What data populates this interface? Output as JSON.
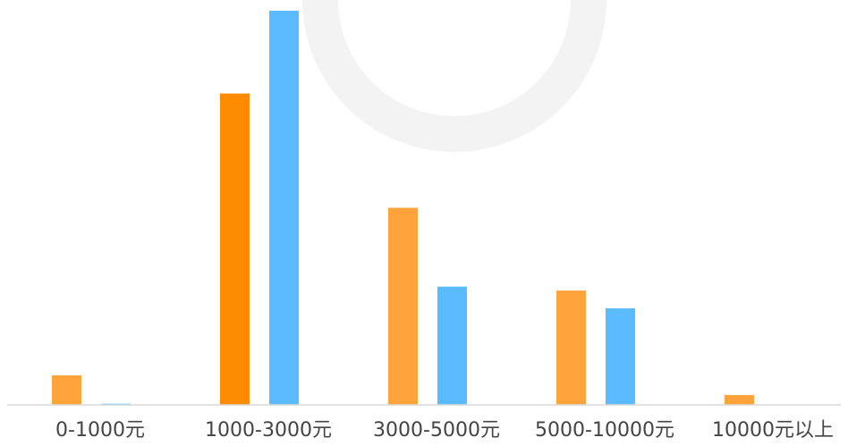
{
  "chart_data": {
    "type": "bar",
    "title": "",
    "xlabel": "",
    "ylabel": "",
    "categories": [
      "0-1000元",
      "1000-3000元",
      "3000-5000元",
      "5000-10000元",
      "10000元以上"
    ],
    "series": [
      {
        "values": [
          7.5,
          79,
          50,
          29,
          2.5
        ],
        "color": "#FFA33A",
        "highlight_color": "#FF8C00",
        "highlight_index": 1
      },
      {
        "values": [
          0.3,
          100,
          30,
          24.5,
          0
        ],
        "color": "#5CBBFF"
      }
    ],
    "ylim": [
      0,
      100
    ],
    "grid": false,
    "legend": "none",
    "colors": {
      "axis": "#D9D9D9",
      "label": "#444444",
      "watermark": "#F3F3F3"
    }
  }
}
